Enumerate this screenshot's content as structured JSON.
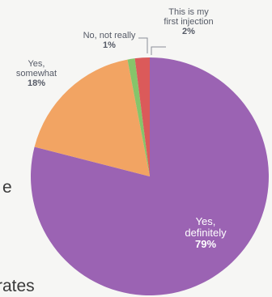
{
  "chart_data": {
    "type": "pie",
    "slices": [
      {
        "label_lines": [
          "Yes,",
          "definitely"
        ],
        "value": 79,
        "value_label": "79%",
        "color": "#9b63b3"
      },
      {
        "label_lines": [
          "Yes,",
          "somewhat"
        ],
        "value": 18,
        "value_label": "18%",
        "color": "#f2a463"
      },
      {
        "label_lines": [
          "No, not really"
        ],
        "value": 1,
        "value_label": "1%",
        "color": "#86c46a"
      },
      {
        "label_lines": [
          "This is my",
          "first injection"
        ],
        "value": 2,
        "value_label": "2%",
        "color": "#db5a5a"
      }
    ]
  },
  "page_fragments": {
    "left_char": "e",
    "bottom_word": "rates"
  }
}
